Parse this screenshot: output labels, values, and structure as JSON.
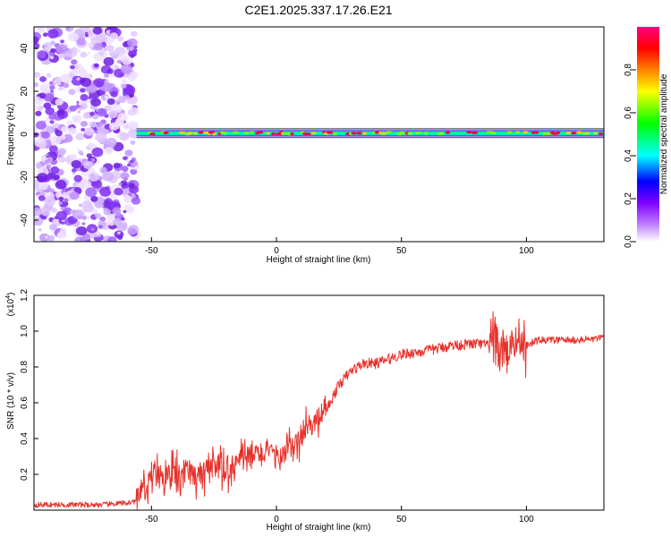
{
  "title": "C2E1.2025.337.17.26.E21",
  "colors": {
    "snr_line": "#e8312b",
    "background": "#ffffff",
    "axes": "#000000"
  },
  "chart_data": [
    {
      "type": "heatmap",
      "xlabel": "Height of straight line (km)",
      "ylabel": "Frequency (Hz)",
      "xlim": [
        -97,
        131
      ],
      "ylim": [
        -50,
        50
      ],
      "xticks": [
        -50,
        0,
        50,
        100
      ],
      "yticks": [
        -40,
        -20,
        0,
        20,
        40
      ],
      "colorbar": {
        "label": "Normalized spectral amplitude",
        "range": [
          0,
          1
        ],
        "ticks": [
          "0.0",
          "0.2",
          "0.4",
          "0.6",
          "0.8"
        ],
        "colormap": [
          "#ffffff",
          "#8000ff",
          "#0000ff",
          "#00ffff",
          "#00ff00",
          "#ffff00",
          "#ff8000",
          "#ff0000",
          "#ff0080"
        ]
      },
      "features": {
        "noise_region_x": [
          -97,
          -56
        ],
        "signal_band_center_hz": 0.5,
        "signal_band_start_x": -56
      }
    },
    {
      "type": "line",
      "xlabel": "Height of straight line (km)",
      "ylabel": "SNR (10 * v/v)",
      "yscale_note": "(x10",
      "yscale_exp": "4",
      "xlim": [
        -97,
        131
      ],
      "ylim": [
        0,
        1.2
      ],
      "xticks": [
        -50,
        0,
        50,
        100
      ],
      "yticks": [
        "0.2",
        "0.4",
        "0.6",
        "0.8",
        "1.0",
        "1.2"
      ],
      "series": [
        {
          "x": [
            -97,
            -90,
            -80,
            -70,
            -60,
            -56,
            -52,
            -48,
            -45,
            -42,
            -38,
            -35,
            -30,
            -25,
            -20,
            -15,
            -10,
            -5,
            0,
            5,
            10,
            13,
            16,
            20,
            25,
            30,
            35,
            40,
            50,
            60,
            70,
            80,
            85,
            88,
            90,
            92,
            94,
            96,
            100,
            105,
            110,
            120,
            131
          ],
          "y": [
            0.03,
            0.03,
            0.03,
            0.03,
            0.04,
            0.05,
            0.13,
            0.22,
            0.2,
            0.2,
            0.19,
            0.2,
            0.19,
            0.22,
            0.23,
            0.28,
            0.3,
            0.32,
            0.3,
            0.33,
            0.4,
            0.47,
            0.5,
            0.56,
            0.7,
            0.78,
            0.82,
            0.82,
            0.87,
            0.89,
            0.92,
            0.93,
            0.92,
            0.95,
            0.88,
            0.9,
            0.93,
            0.95,
            0.92,
            0.95,
            0.95,
            0.95,
            0.96
          ]
        }
      ]
    }
  ]
}
